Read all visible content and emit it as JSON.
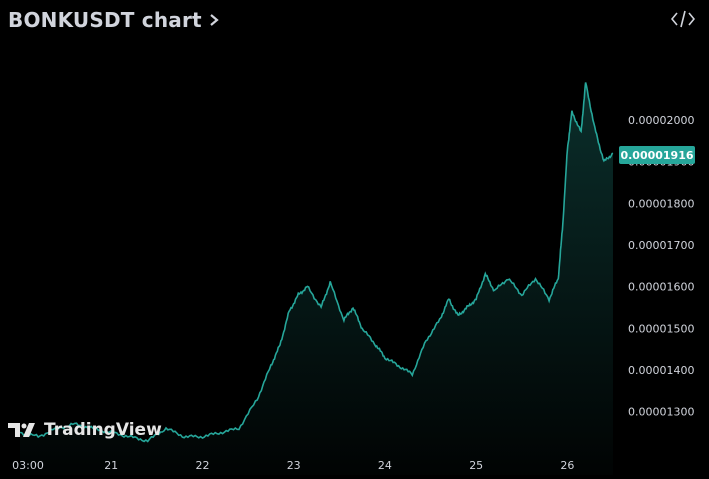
{
  "header": {
    "title": "BONKUSDT chart",
    "embed_icon": "code-embed-icon",
    "chevron_icon": "chevron-right-icon"
  },
  "watermark": {
    "text": "TradingView",
    "icon": "tradingview-logo-icon"
  },
  "colors": {
    "background": "#000000",
    "line": "#26a69a",
    "badge": "#26a69a",
    "axis_text": "#d1d4dc"
  },
  "price_badge": "0.00001916",
  "chart_data": {
    "type": "area",
    "title": "BONKUSDT chart",
    "xlabel": "",
    "ylabel": "",
    "x_ticks": [
      "03:00",
      "21",
      "22",
      "23",
      "24",
      "25",
      "26"
    ],
    "y_ticks": [
      "0.00001300",
      "0.00001400",
      "0.00001500",
      "0.00001600",
      "0.00001700",
      "0.00001800",
      "0.00001900",
      "0.00002000"
    ],
    "ylim": [
      1.22e-05,
      2.12e-05
    ],
    "x_unit": "day of month",
    "series": [
      {
        "x": [
          20.0,
          20.2,
          20.4,
          20.6,
          20.8,
          21.0,
          21.2,
          21.4,
          21.6,
          21.8,
          22.0,
          22.2,
          22.4,
          22.6,
          22.75,
          22.85,
          22.95,
          23.05,
          23.15,
          23.3,
          23.4,
          23.55,
          23.65,
          23.75,
          23.9,
          24.0,
          24.15,
          24.3,
          24.45,
          24.6,
          24.7,
          24.8,
          24.9,
          25.0,
          25.1,
          25.2,
          25.35,
          25.5,
          25.65,
          25.8,
          25.9,
          25.95,
          26.0,
          26.05,
          26.15,
          26.2,
          26.3,
          26.4,
          26.5
        ],
        "y": [
          1.25e-05,
          1.24e-05,
          1.26e-05,
          1.27e-05,
          1.26e-05,
          1.25e-05,
          1.24e-05,
          1.23e-05,
          1.26e-05,
          1.24e-05,
          1.24e-05,
          1.25e-05,
          1.26e-05,
          1.33e-05,
          1.41e-05,
          1.46e-05,
          1.54e-05,
          1.58e-05,
          1.6e-05,
          1.55e-05,
          1.61e-05,
          1.52e-05,
          1.55e-05,
          1.5e-05,
          1.46e-05,
          1.43e-05,
          1.41e-05,
          1.39e-05,
          1.47e-05,
          1.52e-05,
          1.57e-05,
          1.53e-05,
          1.55e-05,
          1.57e-05,
          1.63e-05,
          1.59e-05,
          1.62e-05,
          1.58e-05,
          1.62e-05,
          1.57e-05,
          1.62e-05,
          1.75e-05,
          1.93e-05,
          2.02e-05,
          1.97e-05,
          2.09e-05,
          1.98e-05,
          1.9e-05,
          1.92e-05
        ]
      }
    ],
    "grid": false,
    "current_price": 1.916e-05
  }
}
